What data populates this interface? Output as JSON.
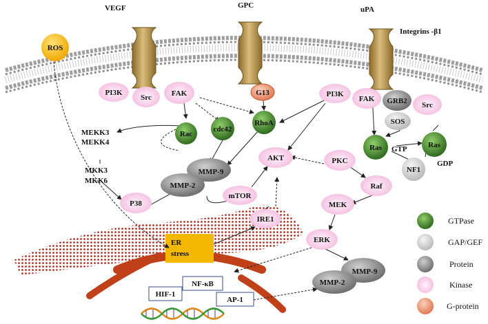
{
  "receptors": {
    "vegf": "VEGF",
    "gpc": "GPC",
    "upa": "uPA",
    "integrins": "Integrins -β1"
  },
  "nodes": {
    "ros": "ROS",
    "pi3k_left": "PI3K",
    "src_left": "Src",
    "fak_left": "FAK",
    "g13": "G13",
    "pi3k_right": "PI3K",
    "fak_right": "FAK",
    "grb2": "GRB2",
    "src_right": "Src",
    "sos": "SOS",
    "rac": "Rac",
    "cdc42": "cdc42",
    "rhoa": "RhoA",
    "ras_gtp": "Ras",
    "ras_gdp": "Ras",
    "gtp_label": "GTP",
    "gdp_label": "GDP",
    "nf1": "NF1",
    "mekk3": "MEKK3",
    "mekk4": "MEKK4",
    "mkk3": "MKK3",
    "mkk6": "MKK6",
    "akt": "AKT",
    "pkc": "PKC",
    "raf": "Raf",
    "mmp9_top": "MMP-9",
    "mmp2_top": "MMP-2",
    "p38": "P38",
    "mtor": "mTOR",
    "ire1": "IRE1",
    "mek": "MEK",
    "erk": "ERK",
    "er_stress_1": "ER",
    "er_stress_2": "stress",
    "mmp9_bottom": "MMP-9",
    "mmp2_bottom": "MMP-2"
  },
  "transcription": {
    "hif1": "HIF-1",
    "nfkb": "NF-κB",
    "ap1": "AP-1"
  },
  "legend": {
    "gtpase": "GTPase",
    "gap_gef": "GAP/GEF",
    "protein": "Protein",
    "kinase": "Kinase",
    "gprotein": "G-protein"
  },
  "colors": {
    "gtpase": "#3f7a2b",
    "gap_gef": "#c9c9c9",
    "protein": "#8d8d8d",
    "kinase": "#f5c6e6",
    "gprotein": "#e8896a",
    "ros": "#f5b800",
    "er_stress": "#f5b800",
    "membrane": "#9e9e9e",
    "er": "#b32d1a"
  }
}
